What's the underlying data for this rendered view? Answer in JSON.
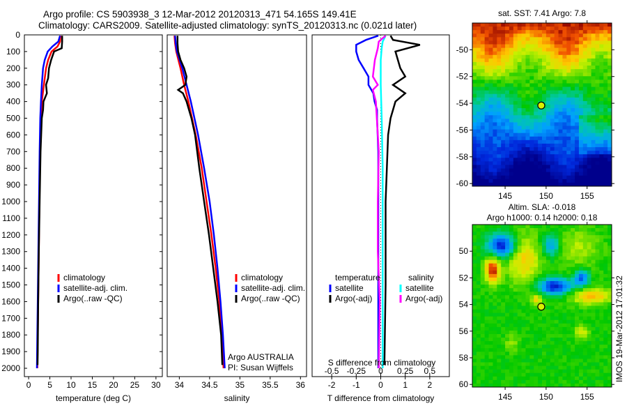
{
  "header": {
    "line1": "Argo profile: CS 5903938_3 12-Mar-2012 20120313_471 54.165S 149.41E",
    "line2": "Climatology: CARS2009. Satellite-adjusted climatology: synTS_20120313.nc (0.021d later)"
  },
  "colors": {
    "climatology": "#ff0000",
    "satellite": "#0000ff",
    "argo": "#000000",
    "sal_satellite": "#00ffff",
    "sal_argo": "#ff00ff"
  },
  "chart_data": [
    {
      "type": "line",
      "id": "temperature",
      "xlabel": "temperature (deg C)",
      "ylabel": "",
      "xlim": [
        -1,
        31.5
      ],
      "ylim": [
        2050,
        0
      ],
      "xticks": [
        0,
        5,
        10,
        15,
        20,
        25,
        30
      ],
      "yticks": [
        0,
        100,
        200,
        300,
        400,
        500,
        600,
        700,
        800,
        900,
        1000,
        1100,
        1200,
        1300,
        1400,
        1500,
        1600,
        1700,
        1800,
        1900,
        2000
      ],
      "legend": [
        "climatology",
        "satellite-adj. clim.",
        "Argo(..raw -QC)"
      ],
      "series": [
        {
          "name": "climatology",
          "color": "#ff0000",
          "depth": [
            5,
            40,
            70,
            100,
            150,
            200,
            300,
            400,
            500,
            700,
            1000,
            1300,
            1600,
            1900,
            2000
          ],
          "values": [
            7.5,
            7.4,
            6.8,
            5.4,
            4.6,
            4.1,
            3.6,
            3.1,
            2.9,
            2.7,
            2.55,
            2.4,
            2.25,
            2.1,
            2.05
          ]
        },
        {
          "name": "satellite-adj. clim.",
          "color": "#0000ff",
          "depth": [
            5,
            40,
            70,
            100,
            150,
            200,
            300,
            400,
            500,
            700,
            1000,
            1300,
            1600,
            1900,
            2000
          ],
          "values": [
            7.4,
            7.0,
            5.6,
            4.5,
            3.8,
            3.4,
            3.1,
            2.9,
            2.75,
            2.6,
            2.45,
            2.3,
            2.15,
            2.0,
            1.95
          ]
        },
        {
          "name": "Argo(..raw -QC)",
          "color": "#000000",
          "depth": [
            5,
            40,
            80,
            100,
            150,
            200,
            260,
            300,
            350,
            400,
            450,
            500,
            700,
            1000,
            1300,
            1600,
            1900,
            1980
          ],
          "values": [
            7.9,
            7.9,
            7.8,
            6.0,
            5.3,
            4.8,
            4.6,
            4.1,
            4.3,
            3.5,
            3.4,
            3.1,
            2.8,
            2.6,
            2.4,
            2.25,
            2.15,
            2.1
          ]
        }
      ]
    },
    {
      "type": "line",
      "id": "salinity",
      "xlabel": "salinity",
      "xlim": [
        33.8,
        36.1
      ],
      "ylim": [
        2050,
        0
      ],
      "xticks": [
        34,
        34.5,
        35,
        35.5,
        36
      ],
      "legend": [
        "climatology",
        "satellite-adj. clim.",
        "Argo(..raw -QC)"
      ],
      "annotation": [
        "Argo AUSTRALIA",
        "PI: Susan Wijffels"
      ],
      "series": [
        {
          "name": "climatology",
          "color": "#ff0000",
          "depth": [
            5,
            50,
            100,
            200,
            300,
            400,
            600,
            800,
            1000,
            1200,
            1400,
            1600,
            1800,
            2000
          ],
          "values": [
            33.92,
            33.93,
            33.95,
            34.02,
            34.08,
            34.15,
            34.27,
            34.37,
            34.45,
            34.53,
            34.6,
            34.66,
            34.7,
            34.73
          ]
        },
        {
          "name": "satellite-adj. clim.",
          "color": "#0000ff",
          "depth": [
            5,
            50,
            100,
            200,
            300,
            400,
            600,
            800,
            1000,
            1200,
            1400,
            1600,
            1800,
            2000
          ],
          "values": [
            33.93,
            33.94,
            33.96,
            34.05,
            34.12,
            34.19,
            34.31,
            34.41,
            34.5,
            34.57,
            34.63,
            34.68,
            34.72,
            34.75
          ]
        },
        {
          "name": "Argo(..raw -QC)",
          "color": "#000000",
          "depth": [
            5,
            50,
            100,
            150,
            200,
            250,
            300,
            330,
            350,
            400,
            450,
            500,
            600,
            800,
            1000,
            1200,
            1400,
            1600,
            1800,
            1980
          ],
          "values": [
            33.97,
            33.97,
            33.98,
            34.02,
            34.08,
            34.12,
            34.1,
            33.98,
            34.06,
            34.12,
            34.16,
            34.2,
            34.26,
            34.33,
            34.41,
            34.49,
            34.56,
            34.63,
            34.69,
            34.71
          ]
        }
      ]
    },
    {
      "type": "line",
      "id": "difference",
      "xlabel": "T difference from climatology",
      "x2label": "S difference from climatology",
      "xlim": [
        -2.8,
        2.8
      ],
      "x2lim": [
        -0.7,
        0.7
      ],
      "ylim": [
        2050,
        0
      ],
      "xticks": [
        -2,
        -1,
        0,
        1,
        2
      ],
      "x2ticks": [
        -0.5,
        -0.25,
        0,
        0.25,
        0.5
      ],
      "x2ticklabels": [
        "-0.5",
        "-0.25",
        "0",
        "0.25",
        "0.5"
      ],
      "legend": {
        "temperature": "temperature",
        "salinity": "salinity",
        "satellite": "satellite",
        "argo": "Argo(-adj)"
      },
      "series": [
        {
          "name": "temperature satellite",
          "axis": "T",
          "color": "#0000ff",
          "depth": [
            5,
            30,
            60,
            100,
            150,
            200,
            250,
            300,
            350,
            400,
            450,
            500,
            700,
            1000,
            1500,
            2000
          ],
          "values": [
            -0.1,
            -0.6,
            -1.0,
            -1.0,
            -0.9,
            -0.7,
            -0.5,
            -0.5,
            -0.3,
            -0.25,
            -0.15,
            -0.15,
            -0.1,
            -0.1,
            -0.1,
            -0.1
          ]
        },
        {
          "name": "temperature Argo(-adj)",
          "axis": "T",
          "color": "#000000",
          "depth": [
            5,
            30,
            60,
            100,
            150,
            200,
            250,
            300,
            350,
            400,
            450,
            500,
            600,
            800,
            1000,
            1500,
            1980
          ],
          "values": [
            0.4,
            0.5,
            1.6,
            0.6,
            0.7,
            0.8,
            1.0,
            0.5,
            1.0,
            0.6,
            0.5,
            0.4,
            0.3,
            0.25,
            0.2,
            0.2,
            0.15
          ]
        },
        {
          "name": "salinity satellite",
          "axis": "S",
          "color": "#00ffff",
          "depth": [
            5,
            40,
            80,
            150,
            300,
            500,
            800,
            1000,
            1500,
            2000
          ],
          "values": [
            0.05,
            0.02,
            0.01,
            0.0,
            0.0,
            0.01,
            0.02,
            0.02,
            0.02,
            0.02
          ]
        },
        {
          "name": "salinity Argo(-adj)",
          "axis": "S",
          "color": "#ff00ff",
          "depth": [
            5,
            40,
            80,
            150,
            250,
            300,
            330,
            400,
            500,
            700,
            1000,
            1300,
            1600,
            2000
          ],
          "values": [
            0.05,
            -0.02,
            -0.03,
            -0.06,
            -0.08,
            -0.03,
            -0.08,
            -0.05,
            -0.04,
            -0.02,
            -0.03,
            -0.03,
            -0.01,
            -0.02
          ]
        }
      ]
    },
    {
      "type": "heatmap",
      "id": "sst-map",
      "title": "sat. SST: 7.41 Argo: 7.8",
      "xlim": [
        141,
        158
      ],
      "ylim": [
        -60.2,
        -48
      ],
      "xticks": [
        145,
        150,
        155
      ],
      "yticks": [
        -50,
        -52,
        -54,
        -56,
        -58,
        -60
      ],
      "marker": {
        "lon": 149.41,
        "lat": -54.165
      }
    },
    {
      "type": "heatmap",
      "id": "sla-map",
      "title": "Altim. SLA: -0.018",
      "subtitle": "Argo h1000: 0.14 h2000: 0.18",
      "xlim": [
        141,
        158
      ],
      "ylim": [
        -60.2,
        -48
      ],
      "xticks": [
        145,
        150,
        155
      ],
      "yticks": [
        -50,
        -52,
        -54,
        -56,
        -58,
        -60
      ],
      "yticklabels": [
        "50",
        "52",
        "54",
        "56",
        "58",
        "60"
      ],
      "marker": {
        "lon": 149.41,
        "lat": -54.165
      }
    }
  ],
  "footer": {
    "stamp": "IMOS 19-Mar-2012 17:01:32"
  }
}
